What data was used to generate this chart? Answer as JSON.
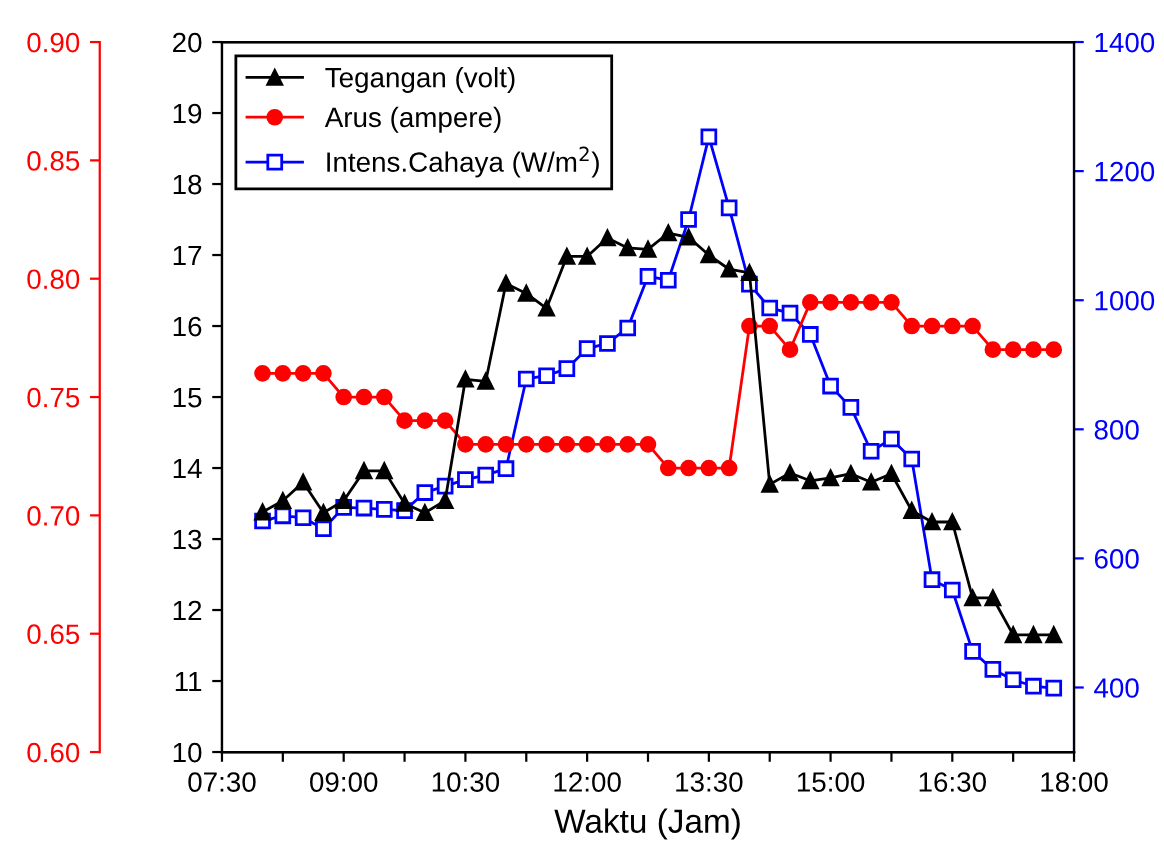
{
  "chart_data": {
    "type": "line",
    "xlabel": "Waktu (Jam)",
    "legend": "top left",
    "grid": false,
    "x": [
      8.0,
      8.25,
      8.5,
      8.75,
      9.0,
      9.25,
      9.5,
      9.75,
      10.0,
      10.25,
      10.5,
      10.75,
      11.0,
      11.25,
      11.5,
      11.75,
      12.0,
      12.25,
      12.5,
      12.75,
      13.0,
      13.25,
      13.5,
      13.75,
      14.0,
      14.25,
      14.5,
      14.75,
      15.0,
      15.25,
      15.5,
      15.75,
      16.0,
      16.25,
      16.5,
      16.75,
      17.0,
      17.25,
      17.5,
      17.75
    ],
    "xlim": [
      7.5,
      18
    ],
    "xticks": [
      {
        "value": 7.5,
        "label": "07:30"
      },
      {
        "value": 8.25,
        "label": null
      },
      {
        "value": 9,
        "label": "09:00"
      },
      {
        "value": 9.75,
        "label": null
      },
      {
        "value": 10.5,
        "label": "10:30"
      },
      {
        "value": 11.25,
        "label": null
      },
      {
        "value": 12,
        "label": "12:00"
      },
      {
        "value": 12.75,
        "label": null
      },
      {
        "value": 13.5,
        "label": "13:30"
      },
      {
        "value": 14.25,
        "label": null
      },
      {
        "value": 15,
        "label": "15:00"
      },
      {
        "value": 15.75,
        "label": null
      },
      {
        "value": 16.5,
        "label": "16:30"
      },
      {
        "value": 17.25,
        "label": null
      },
      {
        "value": 18,
        "label": "18:00"
      }
    ],
    "ylim": [
      10,
      20
    ],
    "yticks": [
      10,
      11,
      12,
      13,
      14,
      15,
      16,
      17,
      18,
      19,
      20
    ],
    "y2lim": [
      300,
      1400
    ],
    "y2ticks": [
      400,
      600,
      800,
      1000,
      1200,
      1400
    ],
    "y3lim": [
      0.6,
      0.9
    ],
    "y3ticks": [
      {
        "value": 0.6,
        "label": "0.60"
      },
      {
        "value": 0.65,
        "label": "0.65"
      },
      {
        "value": 0.7,
        "label": "0.70"
      },
      {
        "value": 0.75,
        "label": "0.75"
      },
      {
        "value": 0.8,
        "label": "0.80"
      },
      {
        "value": 0.85,
        "label": "0.85"
      },
      {
        "value": 0.9,
        "label": "0.90"
      }
    ],
    "series": [
      {
        "name": "Tegangan (volt)",
        "color": "#000000",
        "marker": "triangle",
        "values": [
          13.38,
          13.54,
          13.8,
          13.37,
          13.54,
          13.96,
          13.96,
          13.5,
          13.37,
          13.54,
          15.25,
          15.22,
          16.6,
          16.46,
          16.25,
          16.98,
          16.98,
          17.24,
          17.1,
          17.08,
          17.31,
          17.25,
          17.0,
          16.8,
          16.75,
          13.77,
          13.93,
          13.82,
          13.86,
          13.92,
          13.8,
          13.92,
          13.4,
          13.24,
          13.24,
          12.17,
          12.17,
          11.65,
          11.65,
          11.65
        ]
      },
      {
        "name": "Arus (ampere)",
        "color": "#ff0000",
        "marker": "circle",
        "axis": "y3",
        "values": [
          0.76,
          0.76,
          0.76,
          0.76,
          0.75,
          0.75,
          0.75,
          0.74,
          0.74,
          0.74,
          0.73,
          0.73,
          0.73,
          0.73,
          0.73,
          0.73,
          0.73,
          0.73,
          0.73,
          0.73,
          0.72,
          0.72,
          0.72,
          0.72,
          0.78,
          0.78,
          0.77,
          0.79,
          0.79,
          0.79,
          0.79,
          0.79,
          0.78,
          0.78,
          0.78,
          0.78,
          0.77,
          0.77,
          0.77,
          0.77
        ]
      },
      {
        "name": "Intens.Cahaya (W/m$^{2}$)",
        "color": "#0000ff",
        "marker": "square",
        "axis": "y2",
        "values": [
          658,
          666,
          663,
          646,
          679,
          678,
          676,
          674,
          702,
          712,
          722,
          729,
          739,
          878,
          883,
          894,
          925,
          933,
          957,
          1037,
          1031,
          1125,
          1253,
          1143,
          1025,
          988,
          980,
          947,
          867,
          834,
          766,
          785,
          754,
          567,
          551,
          456,
          428,
          412,
          402,
          399
        ]
      }
    ]
  }
}
